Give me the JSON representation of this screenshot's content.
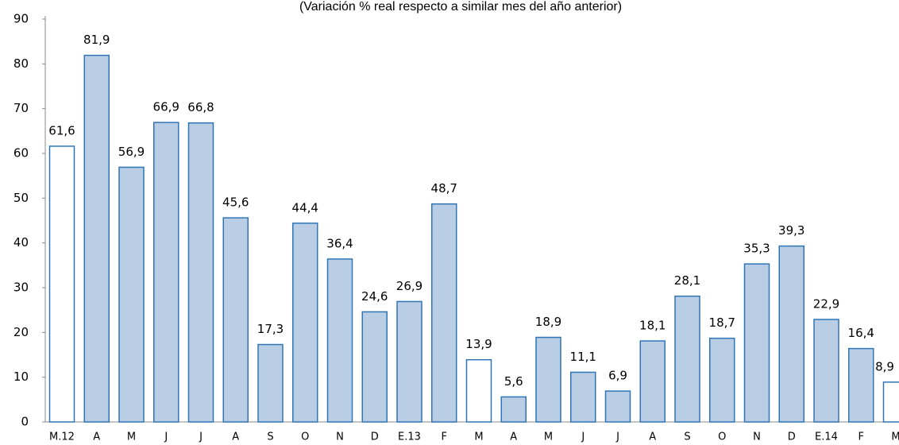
{
  "chart_data": {
    "type": "bar",
    "subtitle": "(Variación % real respecto a similar mes del año anterior)",
    "categories": [
      "M.12",
      "A",
      "M",
      "J",
      "J",
      "A",
      "S",
      "O",
      "N",
      "D",
      "E.13",
      "F",
      "M",
      "A",
      "M",
      "J",
      "J",
      "A",
      "S",
      "O",
      "N",
      "D",
      "E.14",
      "F",
      "M"
    ],
    "values": [
      61.6,
      81.9,
      56.9,
      66.9,
      66.8,
      45.6,
      17.3,
      44.4,
      36.4,
      24.6,
      26.9,
      48.7,
      13.9,
      5.6,
      18.9,
      11.1,
      6.9,
      18.1,
      28.1,
      18.7,
      35.3,
      39.3,
      22.9,
      16.4,
      8.9
    ],
    "value_labels": [
      "61,6",
      "81,9",
      "56,9",
      "66,9",
      "66,8",
      "45,6",
      "17,3",
      "44,4",
      "36,4",
      "24,6",
      "26,9",
      "48,7",
      "13,9",
      "5,6",
      "18,9",
      "11,1",
      "6,9",
      "18,1",
      "28,1",
      "18,7",
      "35,3",
      "39,3",
      "22,9",
      "16,4",
      "8,9"
    ],
    "colors": [
      "#ffffff",
      "#b9cde5",
      "#b9cde5",
      "#b9cde5",
      "#b9cde5",
      "#b9cde5",
      "#b9cde5",
      "#b9cde5",
      "#b9cde5",
      "#b9cde5",
      "#b9cde5",
      "#b9cde5",
      "#ffffff",
      "#b9cde5",
      "#b9cde5",
      "#b9cde5",
      "#b9cde5",
      "#b9cde5",
      "#b9cde5",
      "#b9cde5",
      "#b9cde5",
      "#b9cde5",
      "#b9cde5",
      "#b9cde5",
      "#ffffff"
    ],
    "edge_color": "#2e75b6",
    "ylim": [
      0,
      90
    ],
    "yticks": [
      0,
      10,
      20,
      30,
      40,
      50,
      60,
      70,
      80,
      90
    ],
    "grid": false
  }
}
